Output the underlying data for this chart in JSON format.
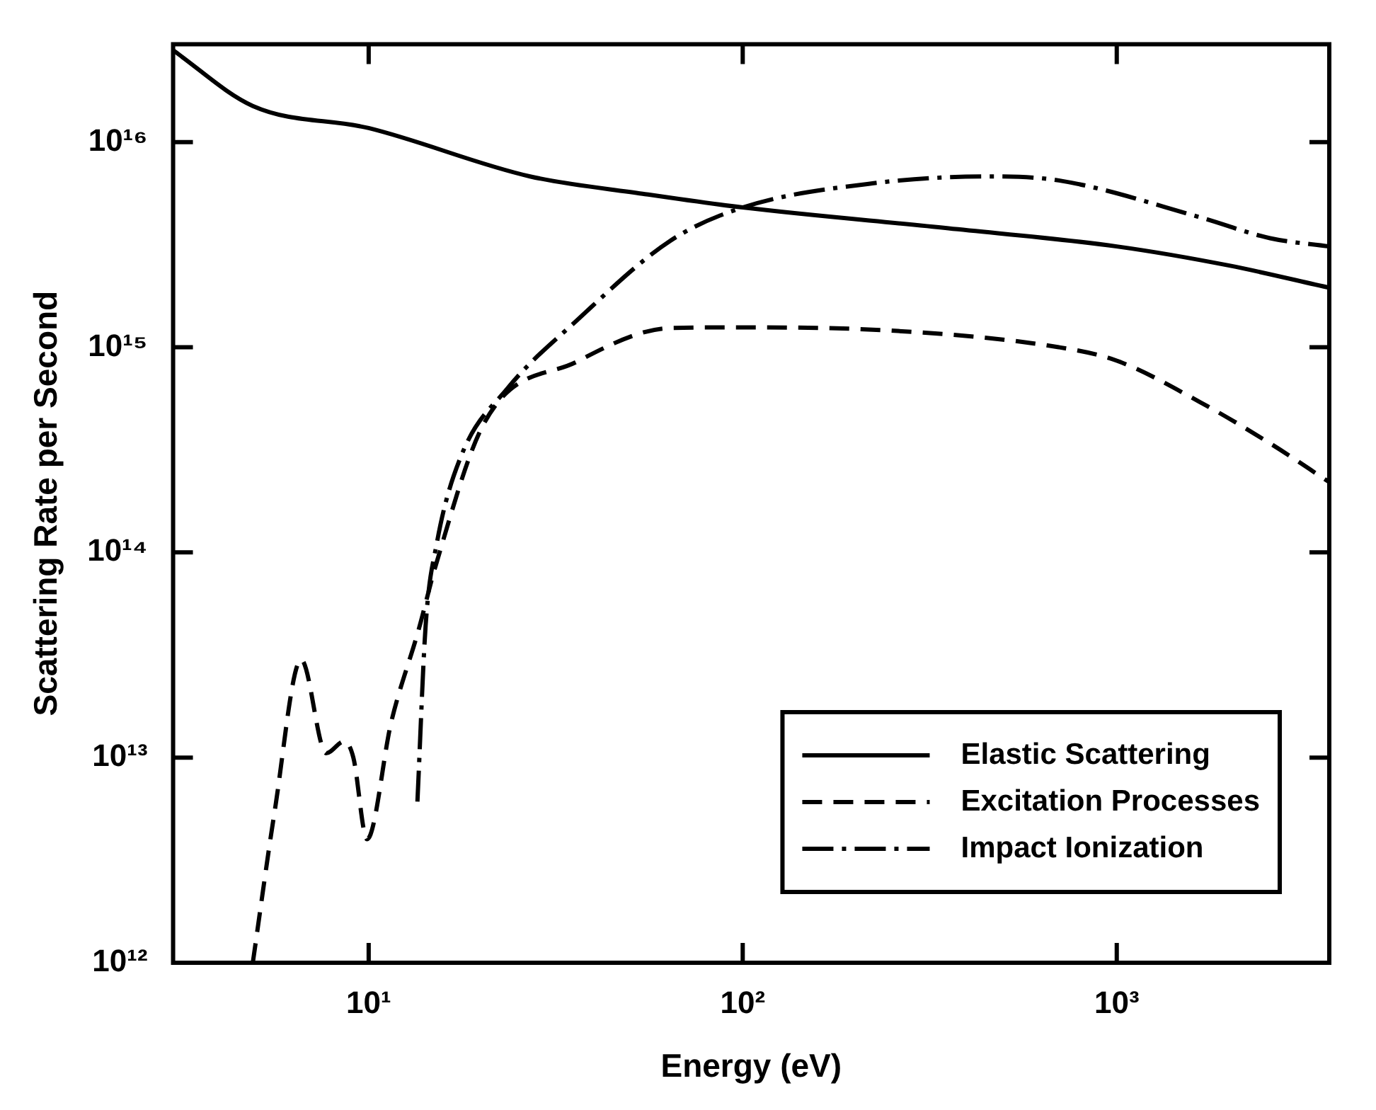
{
  "chart_data": {
    "type": "line",
    "xlabel": "Energy (eV)",
    "ylabel": "Scattering Rate per Second",
    "log": "xy",
    "grid": false,
    "legend": "bottom right",
    "marker": "none",
    "xlim": [
      3,
      3700
    ],
    "ylim": [
      1000000000000.0,
      3e+16
    ],
    "xticks": [
      {
        "value": 10,
        "label": "10¹"
      },
      {
        "value": 100,
        "label": "10²"
      },
      {
        "value": 1000,
        "label": "10³"
      }
    ],
    "yticks": [
      {
        "value": 1000000000000.0,
        "label": "10¹²"
      },
      {
        "value": 10000000000000.0,
        "label": "10¹³"
      },
      {
        "value": 100000000000000.0,
        "label": "10¹⁴"
      },
      {
        "value": 1000000000000000.0,
        "label": "10¹⁵"
      },
      {
        "value": 1e+16,
        "label": "10¹⁶"
      }
    ],
    "series": [
      {
        "name": "Elastic Scattering",
        "color": "#000000",
        "line_style": "solid",
        "x": [
          3,
          4.9,
          10,
          27,
          54,
          100,
          355,
          1000,
          2000,
          3700
        ],
        "values": [
          2.8e+16,
          1.5e+16,
          1.17e+16,
          6800000000000000.0,
          5600000000000000.0,
          4800000000000000.0,
          3800000000000000.0,
          3100000000000000.0,
          2500000000000000.0,
          1950000000000000.0
        ]
      },
      {
        "name": "Excitation Processes",
        "color": "#000000",
        "line_style": "dashed",
        "x": [
          4.9,
          5.6,
          6.6,
          7.7,
          8.6,
          9.1,
          9.9,
          11.5,
          13.6,
          15.1,
          20.4,
          36,
          64,
          100,
          260,
          700,
          1000,
          1670,
          2570,
          3700
        ],
        "values": [
          1000000000000.0,
          5400000000000.0,
          30000000000000.0,
          10500000000000.0,
          12000000000000.0,
          10000000000000.0,
          4000000000000.0,
          15000000000000.0,
          42000000000000.0,
          86000000000000.0,
          430000000000000.0,
          850000000000000.0,
          1240000000000000.0,
          1250000000000000.0,
          1200000000000000.0,
          1000000000000000.0,
          860000000000000.0,
          540000000000000.0,
          340000000000000.0,
          220000000000000.0
        ]
      },
      {
        "name": "Impact Ionization",
        "color": "#000000",
        "line_style": "dashdot",
        "x": [
          13.5,
          14.2,
          15.2,
          17.6,
          23.5,
          36,
          64,
          100,
          224,
          460,
          700,
          1670,
          2570,
          3700
        ],
        "values": [
          6100000000000.0,
          44000000000000.0,
          110000000000000.0,
          290000000000000.0,
          630000000000000.0,
          1350000000000000.0,
          3300000000000000.0,
          4800000000000000.0,
          6300000000000000.0,
          6800000000000000.0,
          6500000000000000.0,
          4300000000000000.0,
          3400000000000000.0,
          3100000000000000.0
        ]
      }
    ]
  }
}
